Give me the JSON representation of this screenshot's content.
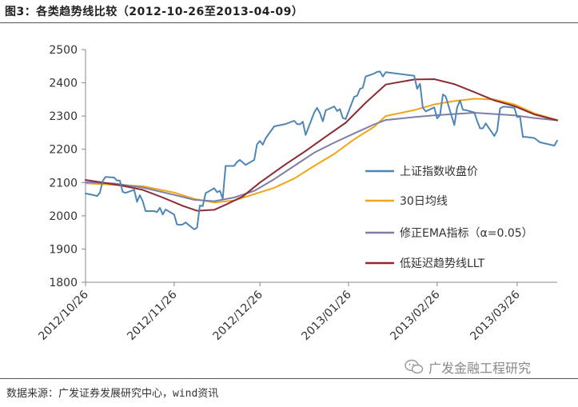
{
  "figure": {
    "title": "图3：各类趋势线比较（2012-10-26至2013-04-09）",
    "source": "数据来源：广发证券发展研究中心，wind资讯",
    "watermark": "广发金融工程研究"
  },
  "colors": {
    "index": "#4F86B5",
    "ma30": "#F2A515",
    "ema": "#7E7FA8",
    "llt": "#8B2B35"
  },
  "chart_data": {
    "type": "line",
    "title": "",
    "xlabel": "",
    "ylabel": "",
    "ylim": [
      1800,
      2500
    ],
    "yticks": [
      1800,
      1900,
      2000,
      2100,
      2200,
      2300,
      2400,
      2500
    ],
    "xlim": [
      "2012-10-26",
      "2013-04-09"
    ],
    "xticks": [
      "2012/10/26",
      "2012/11/26",
      "2012/12/26",
      "2013/01/26",
      "2013/02/26",
      "2013/03/26"
    ],
    "grid": false,
    "legend": "right",
    "series": [
      {
        "name": "上证指数收盘价",
        "color": "#4F86B5",
        "points": [
          [
            "2012-10-26",
            2067
          ],
          [
            "2012-10-29",
            2062
          ],
          [
            "2012-10-30",
            2059
          ],
          [
            "2012-10-31",
            2069
          ],
          [
            "2012-11-01",
            2105
          ],
          [
            "2012-11-02",
            2117
          ],
          [
            "2012-11-05",
            2115
          ],
          [
            "2012-11-06",
            2106
          ],
          [
            "2012-11-07",
            2106
          ],
          [
            "2012-11-08",
            2072
          ],
          [
            "2012-11-09",
            2069
          ],
          [
            "2012-11-12",
            2078
          ],
          [
            "2012-11-13",
            2042
          ],
          [
            "2012-11-14",
            2062
          ],
          [
            "2012-11-15",
            2044
          ],
          [
            "2012-11-16",
            2014
          ],
          [
            "2012-11-19",
            2014
          ],
          [
            "2012-11-20",
            2011
          ],
          [
            "2012-11-21",
            2024
          ],
          [
            "2012-11-22",
            2004
          ],
          [
            "2012-11-23",
            2019
          ],
          [
            "2012-11-26",
            2004
          ],
          [
            "2012-11-27",
            1974
          ],
          [
            "2012-11-28",
            1973
          ],
          [
            "2012-11-29",
            1974
          ],
          [
            "2012-11-30",
            1980
          ],
          [
            "2012-12-03",
            1959
          ],
          [
            "2012-12-04",
            1964
          ],
          [
            "2012-12-05",
            2031
          ],
          [
            "2012-12-06",
            2029
          ],
          [
            "2012-12-07",
            2068
          ],
          [
            "2012-12-10",
            2083
          ],
          [
            "2012-12-11",
            2071
          ],
          [
            "2012-12-12",
            2075
          ],
          [
            "2012-12-13",
            2051
          ],
          [
            "2012-12-14",
            2150
          ],
          [
            "2012-12-17",
            2150
          ],
          [
            "2012-12-18",
            2162
          ],
          [
            "2012-12-19",
            2168
          ],
          [
            "2012-12-20",
            2160
          ],
          [
            "2012-12-21",
            2153
          ],
          [
            "2012-12-24",
            2168
          ],
          [
            "2012-12-25",
            2215
          ],
          [
            "2012-12-26",
            2225
          ],
          [
            "2012-12-27",
            2214
          ],
          [
            "2012-12-28",
            2233
          ],
          [
            "2012-12-31",
            2269
          ],
          [
            "2013-01-04",
            2276
          ],
          [
            "2013-01-07",
            2286
          ],
          [
            "2013-01-08",
            2276
          ],
          [
            "2013-01-09",
            2275
          ],
          [
            "2013-01-10",
            2283
          ],
          [
            "2013-01-11",
            2243
          ],
          [
            "2013-01-14",
            2311
          ],
          [
            "2013-01-15",
            2325
          ],
          [
            "2013-01-16",
            2309
          ],
          [
            "2013-01-17",
            2284
          ],
          [
            "2013-01-18",
            2317
          ],
          [
            "2013-01-21",
            2329
          ],
          [
            "2013-01-22",
            2315
          ],
          [
            "2013-01-23",
            2321
          ],
          [
            "2013-01-24",
            2294
          ],
          [
            "2013-01-25",
            2291
          ],
          [
            "2013-01-28",
            2358
          ],
          [
            "2013-01-29",
            2361
          ],
          [
            "2013-01-30",
            2382
          ],
          [
            "2013-01-31",
            2385
          ],
          [
            "2013-02-01",
            2419
          ],
          [
            "2013-02-04",
            2428
          ],
          [
            "2013-02-05",
            2433
          ],
          [
            "2013-02-06",
            2434
          ],
          [
            "2013-02-07",
            2419
          ],
          [
            "2013-02-08",
            2432
          ],
          [
            "2013-02-18",
            2421
          ],
          [
            "2013-02-19",
            2382
          ],
          [
            "2013-02-20",
            2397
          ],
          [
            "2013-02-21",
            2325
          ],
          [
            "2013-02-22",
            2314
          ],
          [
            "2013-02-25",
            2326
          ],
          [
            "2013-02-26",
            2293
          ],
          [
            "2013-02-27",
            2303
          ],
          [
            "2013-02-28",
            2365
          ],
          [
            "2013-03-01",
            2359
          ],
          [
            "2013-03-04",
            2273
          ],
          [
            "2013-03-05",
            2326
          ],
          [
            "2013-03-06",
            2347
          ],
          [
            "2013-03-07",
            2319
          ],
          [
            "2013-03-08",
            2318
          ],
          [
            "2013-03-11",
            2311
          ],
          [
            "2013-03-12",
            2285
          ],
          [
            "2013-03-13",
            2263
          ],
          [
            "2013-03-14",
            2263
          ],
          [
            "2013-03-15",
            2278
          ],
          [
            "2013-03-18",
            2240
          ],
          [
            "2013-03-19",
            2256
          ],
          [
            "2013-03-20",
            2323
          ],
          [
            "2013-03-21",
            2328
          ],
          [
            "2013-03-22",
            2328
          ],
          [
            "2013-03-25",
            2325
          ],
          [
            "2013-03-26",
            2297
          ],
          [
            "2013-03-27",
            2298
          ],
          [
            "2013-03-28",
            2237
          ],
          [
            "2013-03-29",
            2237
          ],
          [
            "2013-04-01",
            2234
          ],
          [
            "2013-04-02",
            2227
          ],
          [
            "2013-04-03",
            2221
          ],
          [
            "2013-04-08",
            2211
          ],
          [
            "2013-04-09",
            2226
          ]
        ]
      },
      {
        "name": "30日均线",
        "color": "#F2A515",
        "points": [
          [
            "2012-10-26",
            2098
          ],
          [
            "2012-11-05",
            2093
          ],
          [
            "2012-11-15",
            2089
          ],
          [
            "2012-11-26",
            2070
          ],
          [
            "2012-12-03",
            2051
          ],
          [
            "2012-12-10",
            2040
          ],
          [
            "2012-12-17",
            2046
          ],
          [
            "2012-12-24",
            2065
          ],
          [
            "2012-12-31",
            2084
          ],
          [
            "2013-01-07",
            2112
          ],
          [
            "2013-01-14",
            2150
          ],
          [
            "2013-01-21",
            2186
          ],
          [
            "2013-01-28",
            2230
          ],
          [
            "2013-02-04",
            2268
          ],
          [
            "2013-02-08",
            2300
          ],
          [
            "2013-02-18",
            2318
          ],
          [
            "2013-02-25",
            2335
          ],
          [
            "2013-03-04",
            2345
          ],
          [
            "2013-03-11",
            2352
          ],
          [
            "2013-03-18",
            2350
          ],
          [
            "2013-03-25",
            2335
          ],
          [
            "2013-04-01",
            2308
          ],
          [
            "2013-04-09",
            2288
          ]
        ]
      },
      {
        "name": "修正EMA指标（α=0.05）",
        "color": "#7E7FA8",
        "points": [
          [
            "2012-10-26",
            2101
          ],
          [
            "2012-11-05",
            2097
          ],
          [
            "2012-11-15",
            2085
          ],
          [
            "2012-11-26",
            2063
          ],
          [
            "2012-12-03",
            2048
          ],
          [
            "2012-12-10",
            2044
          ],
          [
            "2012-12-17",
            2055
          ],
          [
            "2012-12-24",
            2075
          ],
          [
            "2012-12-31",
            2110
          ],
          [
            "2013-01-07",
            2150
          ],
          [
            "2013-01-14",
            2190
          ],
          [
            "2013-01-21",
            2220
          ],
          [
            "2013-01-28",
            2248
          ],
          [
            "2013-02-04",
            2275
          ],
          [
            "2013-02-08",
            2288
          ],
          [
            "2013-02-18",
            2297
          ],
          [
            "2013-02-25",
            2302
          ],
          [
            "2013-03-04",
            2306
          ],
          [
            "2013-03-11",
            2310
          ],
          [
            "2013-03-18",
            2306
          ],
          [
            "2013-03-25",
            2302
          ],
          [
            "2013-04-01",
            2294
          ],
          [
            "2013-04-09",
            2287
          ]
        ]
      },
      {
        "name": "低延迟趋势线LLT",
        "color": "#8B2B35",
        "points": [
          [
            "2012-10-26",
            2108
          ],
          [
            "2012-11-01",
            2100
          ],
          [
            "2012-11-08",
            2090
          ],
          [
            "2012-11-15",
            2078
          ],
          [
            "2012-11-22",
            2055
          ],
          [
            "2012-11-29",
            2030
          ],
          [
            "2012-12-04",
            2015
          ],
          [
            "2012-12-10",
            2018
          ],
          [
            "2012-12-14",
            2033
          ],
          [
            "2012-12-20",
            2058
          ],
          [
            "2012-12-26",
            2100
          ],
          [
            "2013-01-04",
            2155
          ],
          [
            "2013-01-11",
            2195
          ],
          [
            "2013-01-18",
            2238
          ],
          [
            "2013-01-25",
            2280
          ],
          [
            "2013-02-01",
            2340
          ],
          [
            "2013-02-08",
            2395
          ],
          [
            "2013-02-18",
            2410
          ],
          [
            "2013-02-25",
            2411
          ],
          [
            "2013-03-04",
            2396
          ],
          [
            "2013-03-11",
            2372
          ],
          [
            "2013-03-18",
            2347
          ],
          [
            "2013-03-25",
            2330
          ],
          [
            "2013-04-01",
            2305
          ],
          [
            "2013-04-09",
            2287
          ]
        ]
      }
    ]
  }
}
